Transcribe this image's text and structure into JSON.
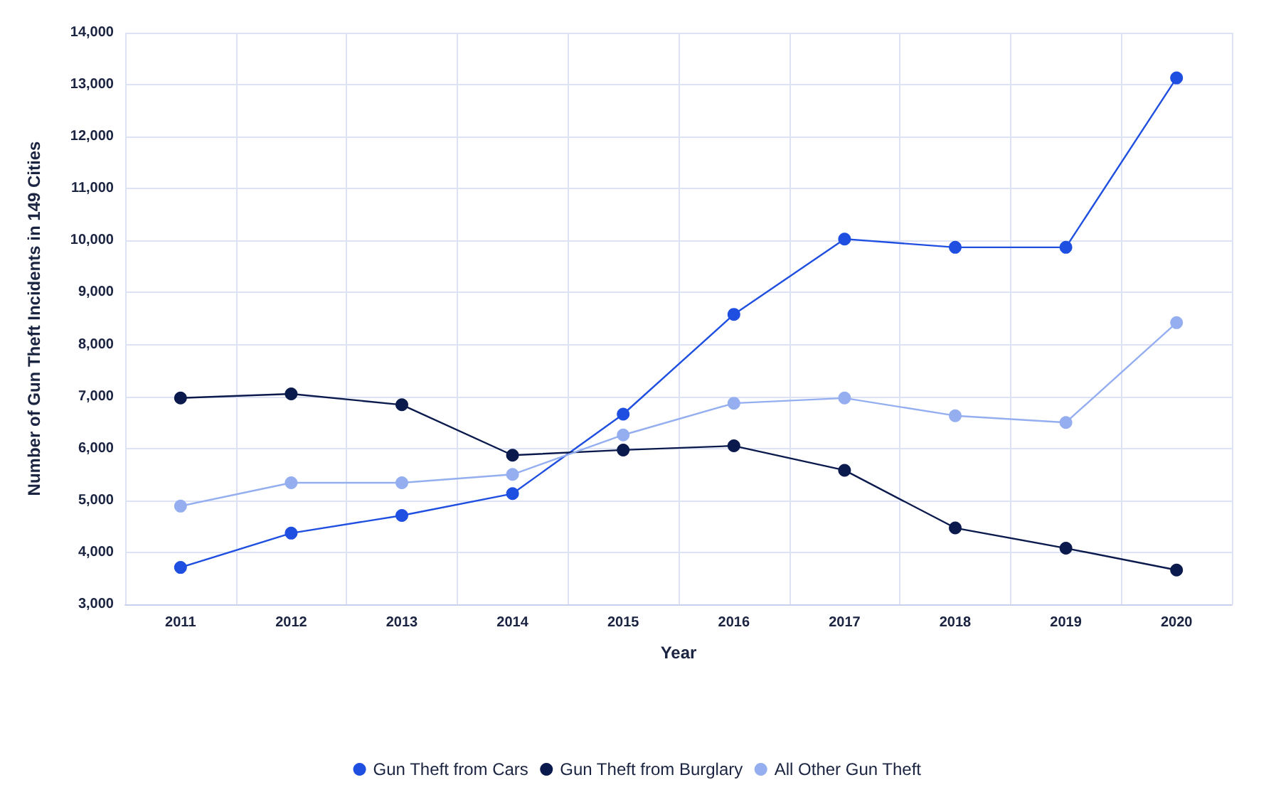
{
  "chart_data": {
    "type": "line",
    "xlabel": "Year",
    "ylabel": "Number of Gun Theft Incidents in 149 Cities",
    "categories": [
      "2011",
      "2012",
      "2013",
      "2014",
      "2015",
      "2016",
      "2017",
      "2018",
      "2019",
      "2020"
    ],
    "series": [
      {
        "name": "Gun Theft from Cars",
        "color": "#1f4fe0",
        "values": [
          3710,
          4370,
          4710,
          5130,
          6660,
          8580,
          10030,
          9870,
          9870,
          13130
        ]
      },
      {
        "name": "Gun Theft from Burglary",
        "color": "#0b1a4d",
        "values": [
          6970,
          7050,
          6840,
          5870,
          5970,
          6050,
          5580,
          4470,
          4080,
          3660
        ]
      },
      {
        "name": "All Other Gun Theft",
        "color": "#94aef0",
        "values": [
          4890,
          5340,
          5340,
          5500,
          6260,
          6870,
          6970,
          6630,
          6500,
          8420
        ]
      }
    ],
    "ylim": [
      3000,
      14000
    ],
    "yticks": [
      {
        "value": 3000,
        "label": "3,000"
      },
      {
        "value": 4000,
        "label": "4,000"
      },
      {
        "value": 5000,
        "label": "5,000"
      },
      {
        "value": 6000,
        "label": "6,000"
      },
      {
        "value": 7000,
        "label": "7,000"
      },
      {
        "value": 8000,
        "label": "8,000"
      },
      {
        "value": 9000,
        "label": "9,000"
      },
      {
        "value": 10000,
        "label": "10,000"
      },
      {
        "value": 11000,
        "label": "11,000"
      },
      {
        "value": 12000,
        "label": "12,000"
      },
      {
        "value": 13000,
        "label": "13,000"
      },
      {
        "value": 14000,
        "label": "14,000"
      }
    ],
    "grid": true,
    "legend": "bottom",
    "marker": "circle",
    "line_style": "solid"
  }
}
